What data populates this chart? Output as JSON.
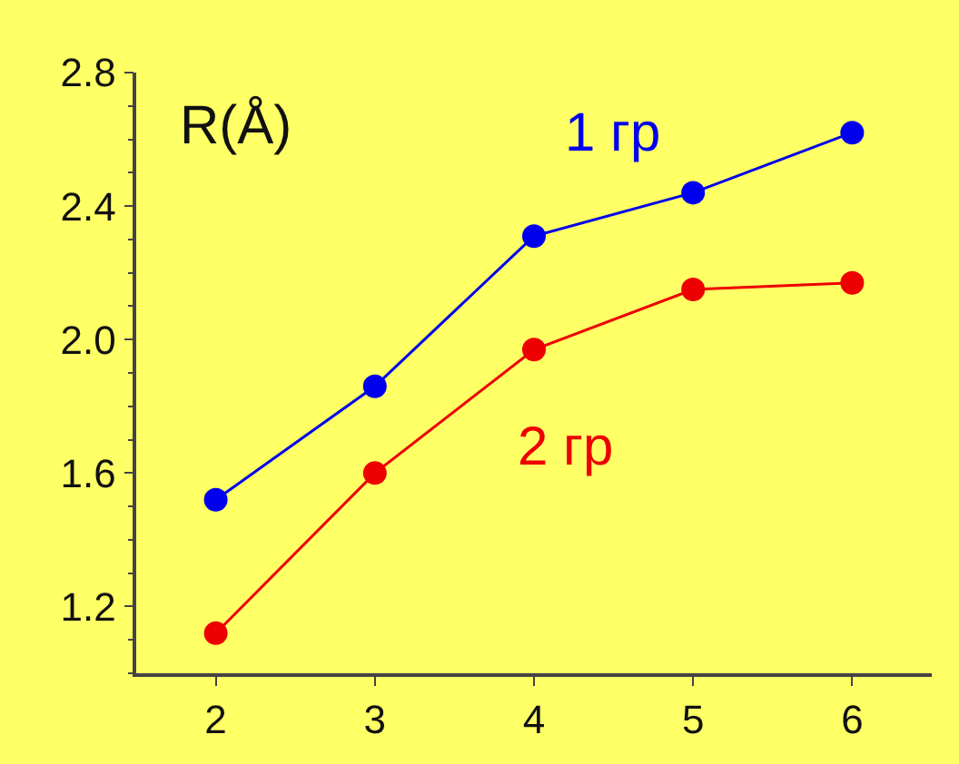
{
  "chart_data": {
    "type": "line",
    "ylabel": "R(Å)",
    "x": [
      2,
      3,
      4,
      5,
      6
    ],
    "series": [
      {
        "name": "1 гр",
        "color": "#0000ee",
        "values": [
          1.52,
          1.86,
          2.31,
          2.44,
          2.62
        ]
      },
      {
        "name": "2 гр",
        "color": "#ee0000",
        "values": [
          1.12,
          1.6,
          1.97,
          2.15,
          2.17
        ]
      }
    ],
    "xlim": [
      1.5,
      6.5
    ],
    "xticks": [
      2,
      3,
      4,
      5,
      6
    ],
    "ylim": [
      1.0,
      2.8
    ],
    "yticks": [
      1.2,
      1.6,
      {
        "value": 2,
        "label": "2.0"
      },
      2.4,
      2.8
    ],
    "marker": "circle",
    "line_style": "solid",
    "grid": false,
    "legend": false
  }
}
